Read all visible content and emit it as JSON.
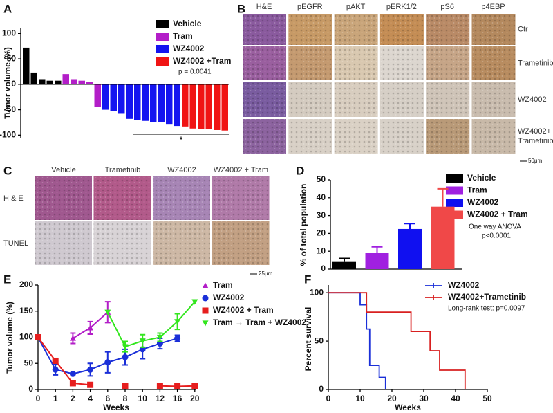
{
  "chart_data": [
    {
      "panel": "A",
      "type": "bar",
      "y_label": "Tumor volume (%)",
      "ylim": [
        -105,
        110
      ],
      "yticks": [
        100,
        50,
        0,
        -50,
        -100
      ],
      "categories": [
        null,
        null,
        null,
        null,
        null,
        null,
        null,
        null,
        null,
        null,
        null,
        null,
        null,
        null,
        null,
        null,
        null,
        null,
        null,
        null,
        null,
        null,
        null,
        null,
        null,
        null
      ],
      "series": [
        {
          "name": "Vehicle",
          "color": "#000000",
          "values": [
            72,
            23,
            10,
            7,
            7,
            null,
            null,
            null,
            null,
            null,
            null,
            null,
            null,
            null,
            null,
            null,
            null,
            null,
            null,
            null,
            null,
            null,
            null,
            null,
            null,
            null
          ]
        },
        {
          "name": "Tram",
          "color": "#b31ec8",
          "values": [
            null,
            null,
            null,
            null,
            null,
            20,
            10,
            7,
            4,
            -45,
            null,
            null,
            null,
            null,
            null,
            null,
            null,
            null,
            null,
            null,
            null,
            null,
            null,
            null,
            null,
            null
          ]
        },
        {
          "name": "WZ4002",
          "color": "#1414f0",
          "values": [
            null,
            null,
            null,
            null,
            null,
            null,
            null,
            null,
            null,
            null,
            -50,
            -53,
            -58,
            -68,
            -70,
            -72,
            -75,
            -75,
            -78,
            -82,
            null,
            null,
            null,
            null,
            null,
            null
          ]
        },
        {
          "name": "WZ4002 +Tram",
          "color": "#f01414",
          "values": [
            null,
            null,
            null,
            null,
            null,
            null,
            null,
            null,
            null,
            null,
            null,
            null,
            null,
            null,
            null,
            null,
            null,
            null,
            null,
            null,
            -83,
            -87,
            -88,
            -88,
            -90,
            -91
          ]
        }
      ],
      "annotation": "*",
      "legend_note": "p = 0.0041"
    },
    {
      "panel": "D",
      "type": "bar",
      "y_label": "% of total population",
      "ylim": [
        0,
        50
      ],
      "yticks": [
        0,
        10,
        20,
        30,
        40,
        50
      ],
      "categories": [
        "Vehicle",
        "Tram",
        "WZ4002",
        "WZ4002 + Tram"
      ],
      "colors": [
        "#000000",
        "#a020e0",
        "#1010f0",
        "#f04848"
      ],
      "values": [
        4,
        9,
        22.5,
        35
      ],
      "errors": [
        2,
        3.5,
        3,
        10
      ],
      "annotation": [
        "One way ANOVA",
        "p<0.0001"
      ]
    },
    {
      "panel": "E",
      "type": "line",
      "x_label": "Weeks",
      "y_label": "Tumor volume (%)",
      "categories": [
        "0",
        "1",
        "2",
        "4",
        "6",
        "8",
        "10",
        "12",
        "16",
        "20"
      ],
      "ylim": [
        0,
        200
      ],
      "yticks": [
        0,
        50,
        100,
        150,
        200
      ],
      "series": [
        {
          "name": "Tram",
          "color": "#b31ec8",
          "marker": "triangle",
          "values": [
            null,
            null,
            98,
            118,
            148,
            null,
            null,
            null,
            null,
            null
          ],
          "errors": [
            null,
            null,
            10,
            12,
            20,
            null,
            null,
            null,
            null,
            null
          ]
        },
        {
          "name": "WZ4002",
          "color": "#1a2fd8",
          "marker": "circle",
          "values": [
            100,
            38,
            30,
            38,
            52,
            62,
            77,
            88,
            98,
            null
          ],
          "errors": [
            null,
            10,
            null,
            12,
            20,
            15,
            18,
            10,
            6,
            null
          ]
        },
        {
          "name": "WZ4002 + Tram",
          "color": "#e61e1e",
          "marker": "square",
          "values": [
            100,
            55,
            12,
            9,
            null,
            7,
            null,
            7,
            6,
            7
          ],
          "errors": [
            null,
            null,
            null,
            null,
            null,
            null,
            null,
            null,
            null,
            null
          ]
        },
        {
          "name": "Tram → Tram + WZ4002",
          "color": "#33e61e",
          "marker": "triangle-down",
          "values": [
            null,
            null,
            null,
            null,
            148,
            82,
            93,
            100,
            130,
            168
          ],
          "errors": [
            null,
            null,
            null,
            null,
            null,
            10,
            12,
            8,
            15,
            null
          ]
        }
      ]
    },
    {
      "panel": "F",
      "type": "survival",
      "x_label": "Weeks",
      "y_label": "Percent survival",
      "xlim": [
        0,
        50
      ],
      "xticks": [
        0,
        10,
        20,
        30,
        40,
        50
      ],
      "ylim": [
        0,
        108
      ],
      "yticks": [
        0,
        50,
        100
      ],
      "annotation": "Long-rank test: p=0.0097",
      "series": [
        {
          "name": "WZ4002",
          "color": "#1a2fd8",
          "x": [
            0,
            10,
            12,
            13,
            16,
            18
          ],
          "values": [
            100,
            87.5,
            62.5,
            25,
            12.5,
            0
          ]
        },
        {
          "name": "WZ4002+Trametinib",
          "color": "#d82020",
          "x": [
            0,
            12,
            26,
            32,
            35,
            43
          ],
          "values": [
            100,
            80,
            60,
            40,
            20,
            0
          ]
        }
      ]
    }
  ],
  "image_panels": [
    {
      "panel": "B",
      "columns": [
        "H&E",
        "pEGFR",
        "pAKT",
        "pERK1/2",
        "pS6",
        "p4EBP"
      ],
      "rows": [
        [
          "Ctr"
        ],
        [
          "Trametinib"
        ],
        [
          "WZ4002"
        ],
        [
          "WZ4002+",
          "Trametinib"
        ]
      ],
      "scale": "50μm"
    },
    {
      "panel": "C",
      "columns": [
        "Vehicle",
        "Trametinib",
        "WZ4002",
        "WZ4002 + Tram"
      ],
      "rows": [
        "H & E",
        "TUNEL"
      ],
      "scale": "25μm"
    }
  ]
}
